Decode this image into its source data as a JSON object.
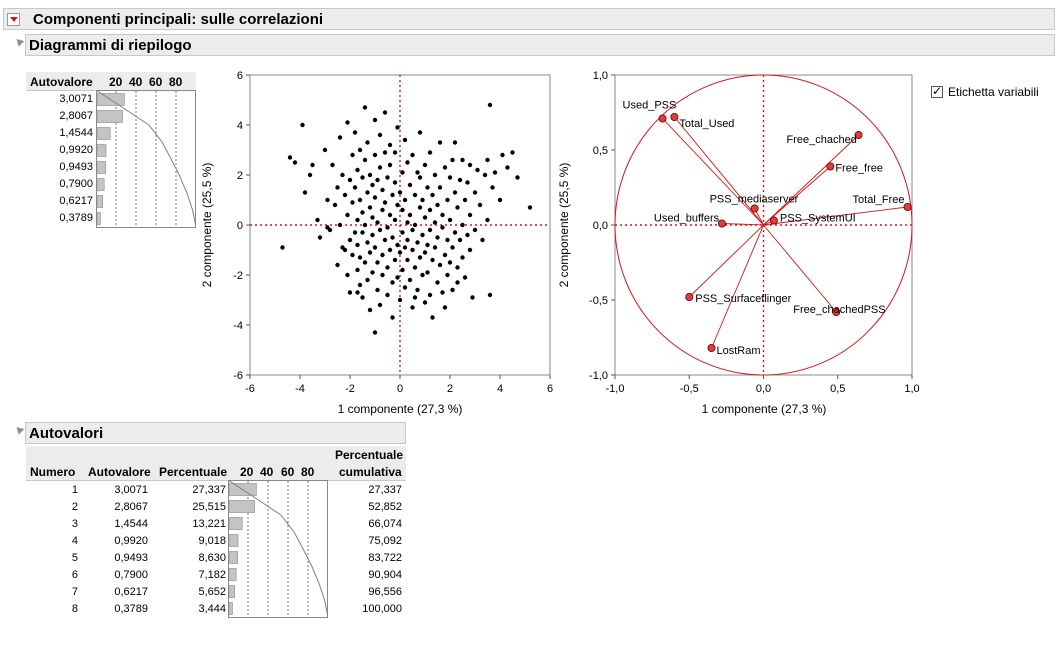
{
  "report": {
    "title": "Componenti principali: sulle correlazioni",
    "summary_title": "Diagrammi di riepilogo",
    "eigen_title": "Autovalori"
  },
  "small_eigen_table": {
    "header": "Autovalore",
    "scale_labels": [
      "20",
      "40",
      "60",
      "80"
    ],
    "values": [
      "3,0071",
      "2,8067",
      "1,4544",
      "0,9920",
      "0,9493",
      "0,7900",
      "0,6217",
      "0,3789"
    ]
  },
  "score_plot": {
    "xlabel": "1 componente  (27,3 %)",
    "ylabel": "2 componente  (25,5 %)",
    "xticks": [
      "-6",
      "-4",
      "-2",
      "0",
      "2",
      "4",
      "6"
    ],
    "yticks": [
      "6",
      "4",
      "2",
      "0",
      "-2",
      "-4",
      "-6"
    ]
  },
  "loading_plot": {
    "xlabel": "1 componente  (27,3 %)",
    "ylabel": "2 componente  (25,5 %)",
    "xticks": [
      "-1,0",
      "-0,5",
      "0,0",
      "0,5",
      "1,0"
    ],
    "yticks": [
      "1,0",
      "0,5",
      "0,0",
      "-0,5",
      "-1,0"
    ]
  },
  "checkbox": {
    "label": "Etichetta variabili",
    "checked": true
  },
  "eigen_table": {
    "headers": {
      "numero": "Numero",
      "autovalore": "Autovalore",
      "percentuale": "Percentuale",
      "cum_line1": "Percentuale",
      "cum_line2": "cumulativa"
    },
    "scale_labels": [
      "20",
      "40",
      "60",
      "80"
    ],
    "rows": [
      {
        "n": "1",
        "eig": "3,0071",
        "pct": "27,337",
        "cum": "27,337"
      },
      {
        "n": "2",
        "eig": "2,8067",
        "pct": "25,515",
        "cum": "52,852"
      },
      {
        "n": "3",
        "eig": "1,4544",
        "pct": "13,221",
        "cum": "66,074"
      },
      {
        "n": "4",
        "eig": "0,9920",
        "pct": "9,018",
        "cum": "75,092"
      },
      {
        "n": "5",
        "eig": "0,9493",
        "pct": "8,630",
        "cum": "83,722"
      },
      {
        "n": "6",
        "eig": "0,7900",
        "pct": "7,182",
        "cum": "90,904"
      },
      {
        "n": "7",
        "eig": "0,6217",
        "pct": "5,652",
        "cum": "96,556"
      },
      {
        "n": "8",
        "eig": "0,3789",
        "pct": "3,444",
        "cum": "100,000"
      }
    ]
  },
  "chart_data": [
    {
      "type": "bar",
      "categories": [
        "1",
        "2",
        "3",
        "4",
        "5",
        "6",
        "7",
        "8"
      ],
      "values": [
        27.337,
        25.515,
        13.221,
        9.018,
        8.63,
        7.182,
        5.652,
        3.444
      ],
      "cumulative": [
        27.337,
        52.852,
        66.074,
        75.092,
        83.722,
        90.904,
        96.556,
        100.0
      ],
      "xlim": [
        0,
        100
      ],
      "grid": true
    },
    {
      "type": "scatter",
      "xlabel": "1 componente  (27,3 %)",
      "ylabel": "2 componente  (25,5 %)",
      "xlim": [
        -6,
        6
      ],
      "ylim": [
        -6,
        6
      ],
      "points": [
        [
          -4.7,
          -0.9
        ],
        [
          -4.4,
          2.7
        ],
        [
          -4.2,
          2.5
        ],
        [
          -3.9,
          4.0
        ],
        [
          -3.8,
          1.3
        ],
        [
          -3.6,
          2.0
        ],
        [
          -3.3,
          0.2
        ],
        [
          -3.2,
          -0.5
        ],
        [
          -3.0,
          3.0
        ],
        [
          -2.9,
          1.0
        ],
        [
          -2.8,
          -0.2
        ],
        [
          -2.7,
          2.4
        ],
        [
          -2.6,
          0.8
        ],
        [
          -2.5,
          -1.6
        ],
        [
          -2.5,
          1.5
        ],
        [
          -2.4,
          3.5
        ],
        [
          -2.4,
          0.0
        ],
        [
          -2.3,
          -0.9
        ],
        [
          -2.3,
          2.0
        ],
        [
          -2.2,
          -1.0
        ],
        [
          -2.2,
          1.2
        ],
        [
          -2.1,
          -2.0
        ],
        [
          -2.1,
          0.4
        ],
        [
          -2.1,
          4.1
        ],
        [
          -2.0,
          -0.6
        ],
        [
          -2.0,
          1.8
        ],
        [
          -2.0,
          -2.7
        ],
        [
          -1.9,
          2.8
        ],
        [
          -1.9,
          -1.2
        ],
        [
          -1.9,
          0.9
        ],
        [
          -1.8,
          -0.3
        ],
        [
          -1.8,
          3.7
        ],
        [
          -1.8,
          1.5
        ],
        [
          -1.7,
          -1.8
        ],
        [
          -1.7,
          0.2
        ],
        [
          -1.7,
          2.2
        ],
        [
          -1.7,
          -0.8
        ],
        [
          -1.6,
          -2.4
        ],
        [
          -1.6,
          1.0
        ],
        [
          -1.6,
          -1.3
        ],
        [
          -1.6,
          3.0
        ],
        [
          -1.5,
          0.5
        ],
        [
          -1.5,
          -0.3
        ],
        [
          -1.5,
          1.9
        ],
        [
          -1.5,
          -2.9
        ],
        [
          -1.4,
          4.7
        ],
        [
          -1.4,
          -1.5
        ],
        [
          -1.4,
          2.6
        ],
        [
          -1.4,
          0.0
        ],
        [
          -1.3,
          -0.7
        ],
        [
          -1.3,
          1.3
        ],
        [
          -1.3,
          -2.2
        ],
        [
          -1.3,
          3.3
        ],
        [
          -1.2,
          0.7
        ],
        [
          -1.2,
          -1.1
        ],
        [
          -1.2,
          2.0
        ],
        [
          -1.2,
          -3.4
        ],
        [
          -1.1,
          -0.4
        ],
        [
          -1.1,
          1.6
        ],
        [
          -1.1,
          -1.9
        ],
        [
          -1.1,
          0.3
        ],
        [
          -1.0,
          4.2
        ],
        [
          -1.0,
          -4.3
        ],
        [
          -1.0,
          1.1
        ],
        [
          -1.0,
          -0.9
        ],
        [
          -1.0,
          2.8
        ],
        [
          -0.9,
          -2.6
        ],
        [
          -0.9,
          0.1
        ],
        [
          -0.9,
          1.8
        ],
        [
          -0.9,
          -1.5
        ],
        [
          -0.8,
          3.6
        ],
        [
          -0.8,
          -0.2
        ],
        [
          -0.8,
          2.3
        ],
        [
          -0.8,
          -3.2
        ],
        [
          -0.7,
          0.6
        ],
        [
          -0.7,
          -1.2
        ],
        [
          -0.7,
          1.4
        ],
        [
          -0.7,
          -2.0
        ],
        [
          -0.6,
          2.9
        ],
        [
          -0.6,
          -0.6
        ],
        [
          -0.6,
          4.5
        ],
        [
          -0.6,
          0.9
        ],
        [
          -0.5,
          -1.7
        ],
        [
          -0.5,
          1.9
        ],
        [
          -0.5,
          -0.1
        ],
        [
          -0.5,
          -2.8
        ],
        [
          -0.4,
          3.2
        ],
        [
          -0.4,
          0.4
        ],
        [
          -0.4,
          -1.0
        ],
        [
          -0.4,
          2.4
        ],
        [
          -0.3,
          -3.7
        ],
        [
          -0.3,
          1.2
        ],
        [
          -0.3,
          -0.5
        ],
        [
          -0.3,
          -2.3
        ],
        [
          -0.2,
          0.2
        ],
        [
          -0.2,
          1.7
        ],
        [
          -0.2,
          -1.4
        ],
        [
          -0.2,
          2.9
        ],
        [
          -0.1,
          -0.8
        ],
        [
          -0.1,
          3.9
        ],
        [
          -0.1,
          -2.1
        ],
        [
          -0.1,
          0.8
        ],
        [
          0.0,
          1.3
        ],
        [
          0.0,
          -1.1
        ],
        [
          0.0,
          -3.0
        ],
        [
          0.1,
          2.1
        ],
        [
          0.1,
          -0.3
        ],
        [
          0.1,
          0.6
        ],
        [
          0.1,
          -1.8
        ],
        [
          0.2,
          3.4
        ],
        [
          0.2,
          -0.9
        ],
        [
          0.2,
          1.0
        ],
        [
          0.2,
          -2.5
        ],
        [
          0.3,
          0.1
        ],
        [
          0.3,
          2.5
        ],
        [
          0.3,
          -1.4
        ],
        [
          0.3,
          -0.6
        ],
        [
          0.4,
          1.6
        ],
        [
          0.4,
          -2.2
        ],
        [
          0.4,
          0.4
        ],
        [
          0.5,
          -1.0
        ],
        [
          0.5,
          2.8
        ],
        [
          0.5,
          -3.3
        ],
        [
          0.5,
          -0.2
        ],
        [
          0.6,
          1.2
        ],
        [
          0.6,
          -1.7
        ],
        [
          0.6,
          0.0
        ],
        [
          0.7,
          2.1
        ],
        [
          0.7,
          -0.7
        ],
        [
          0.7,
          -2.6
        ],
        [
          0.8,
          0.7
        ],
        [
          0.8,
          -1.3
        ],
        [
          0.8,
          1.9
        ],
        [
          0.8,
          3.7
        ],
        [
          0.9,
          -0.4
        ],
        [
          0.9,
          -2.0
        ],
        [
          0.9,
          1.0
        ],
        [
          1.0,
          -1.1
        ],
        [
          1.0,
          2.4
        ],
        [
          1.0,
          0.3
        ],
        [
          1.0,
          -3.1
        ],
        [
          1.1,
          -0.8
        ],
        [
          1.1,
          1.5
        ],
        [
          1.1,
          -1.9
        ],
        [
          1.2,
          0.6
        ],
        [
          1.2,
          2.9
        ],
        [
          1.2,
          -0.2
        ],
        [
          1.2,
          -2.8
        ],
        [
          1.3,
          -1.4
        ],
        [
          1.3,
          1.2
        ],
        [
          1.3,
          -3.7
        ],
        [
          1.4,
          0.1
        ],
        [
          1.4,
          -0.9
        ],
        [
          1.4,
          2.0
        ],
        [
          1.5,
          -2.3
        ],
        [
          1.5,
          0.8
        ],
        [
          1.5,
          -0.5
        ],
        [
          1.6,
          3.3
        ],
        [
          1.6,
          -1.6
        ],
        [
          1.6,
          1.5
        ],
        [
          1.7,
          -0.1
        ],
        [
          1.7,
          -2.7
        ],
        [
          1.7,
          0.4
        ],
        [
          1.8,
          2.3
        ],
        [
          1.8,
          -1.2
        ],
        [
          1.8,
          -3.3
        ],
        [
          1.9,
          1.0
        ],
        [
          1.9,
          -0.6
        ],
        [
          1.9,
          -2.0
        ],
        [
          2.0,
          1.9
        ],
        [
          2.0,
          -1.5
        ],
        [
          2.0,
          0.2
        ],
        [
          2.1,
          2.6
        ],
        [
          2.1,
          -0.9
        ],
        [
          2.1,
          -2.6
        ],
        [
          2.2,
          1.3
        ],
        [
          2.2,
          -0.3
        ],
        [
          2.2,
          3.3
        ],
        [
          2.3,
          -1.7
        ],
        [
          2.3,
          0.7
        ],
        [
          2.3,
          -2.3
        ],
        [
          2.4,
          1.8
        ],
        [
          2.4,
          -0.6
        ],
        [
          2.5,
          0.0
        ],
        [
          2.5,
          2.6
        ],
        [
          2.5,
          -1.3
        ],
        [
          2.6,
          1.0
        ],
        [
          2.6,
          -2.1
        ],
        [
          2.7,
          -0.4
        ],
        [
          2.7,
          1.7
        ],
        [
          2.8,
          2.4
        ],
        [
          2.8,
          0.4
        ],
        [
          2.8,
          -1.0
        ],
        [
          2.9,
          -2.9
        ],
        [
          3.0,
          1.3
        ],
        [
          3.0,
          -0.2
        ],
        [
          3.1,
          2.2
        ],
        [
          3.2,
          0.8
        ],
        [
          3.3,
          -0.6
        ],
        [
          3.4,
          2.0
        ],
        [
          3.5,
          2.6
        ],
        [
          3.5,
          0.2
        ],
        [
          3.6,
          4.8
        ],
        [
          3.7,
          1.5
        ],
        [
          3.8,
          2.1
        ],
        [
          4.0,
          1.0
        ],
        [
          4.1,
          2.8
        ],
        [
          4.3,
          2.3
        ],
        [
          4.5,
          2.9
        ],
        [
          4.7,
          1.9
        ],
        [
          5.2,
          0.7
        ],
        [
          -3.5,
          2.4
        ],
        [
          -2.9,
          -0.1
        ],
        [
          -1.7,
          -2.7
        ],
        [
          0.6,
          -2.9
        ],
        [
          3.6,
          -2.8
        ]
      ]
    },
    {
      "type": "scatter",
      "xlabel": "1 componente  (27,3 %)",
      "ylabel": "2 componente  (25,5 %)",
      "xlim": [
        -1,
        1
      ],
      "ylim": [
        -1,
        1
      ],
      "series": [
        {
          "name": "Used_PSS",
          "x": -0.68,
          "y": 0.71
        },
        {
          "name": "Total_Used",
          "x": -0.6,
          "y": 0.72
        },
        {
          "name": "Free_chached",
          "x": 0.64,
          "y": 0.6
        },
        {
          "name": "Free_free",
          "x": 0.45,
          "y": 0.39
        },
        {
          "name": "Total_Free",
          "x": 0.97,
          "y": 0.12
        },
        {
          "name": "PSS_mediaserver",
          "x": -0.06,
          "y": 0.11
        },
        {
          "name": "PSS_SystemUI",
          "x": 0.07,
          "y": 0.03
        },
        {
          "name": "Used_buffers",
          "x": -0.28,
          "y": 0.01
        },
        {
          "name": "PSS_Surfaceflinger",
          "x": -0.5,
          "y": -0.48
        },
        {
          "name": "Free_chachedPSS",
          "x": 0.49,
          "y": -0.58
        },
        {
          "name": "LostRam",
          "x": -0.35,
          "y": -0.82
        }
      ]
    }
  ]
}
